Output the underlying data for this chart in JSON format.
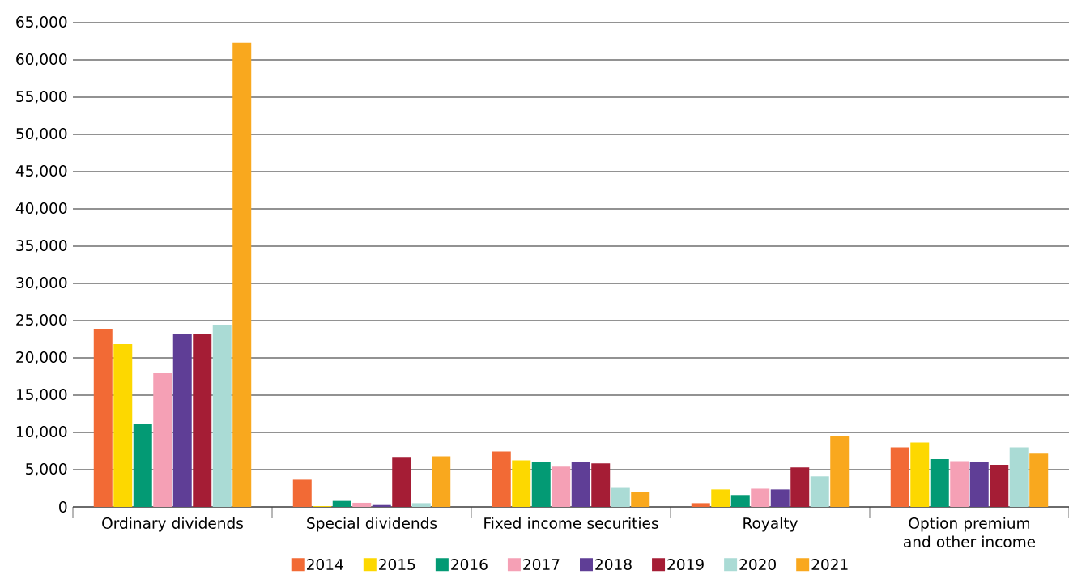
{
  "chart_data": {
    "type": "bar",
    "categories": [
      "Ordinary dividends",
      "Special dividends",
      "Fixed income securities",
      "Royalty",
      "Option premium and other income"
    ],
    "series": [
      {
        "name": "2014",
        "color": "#f26a35",
        "values": [
          23900,
          3650,
          7450,
          500,
          8000
        ]
      },
      {
        "name": "2015",
        "color": "#fdd800",
        "values": [
          21850,
          100,
          6250,
          2350,
          8650
        ]
      },
      {
        "name": "2016",
        "color": "#039a74",
        "values": [
          11150,
          800,
          6050,
          1600,
          6400
        ]
      },
      {
        "name": "2017",
        "color": "#f5a0b5",
        "values": [
          18050,
          550,
          5400,
          2450,
          6150
        ]
      },
      {
        "name": "2018",
        "color": "#5f3e96",
        "values": [
          23150,
          250,
          6050,
          2350,
          6050
        ]
      },
      {
        "name": "2019",
        "color": "#a51d35",
        "values": [
          23150,
          6700,
          5850,
          5300,
          5650
        ]
      },
      {
        "name": "2020",
        "color": "#aadbd5",
        "values": [
          24450,
          500,
          2550,
          4100,
          8000
        ]
      },
      {
        "name": "2021",
        "color": "#f9a81e",
        "values": [
          62300,
          6800,
          2050,
          9550,
          7150
        ]
      }
    ],
    "ylim": [
      0,
      65000
    ],
    "yticks": [
      0,
      {
        "value": 5000,
        "label": "5,000"
      },
      {
        "value": 10000,
        "label": "10,000"
      },
      {
        "value": 15000,
        "label": "15,000"
      },
      {
        "value": 20000,
        "label": "20,000"
      },
      {
        "value": 25000,
        "label": "25,000"
      },
      {
        "value": 30000,
        "label": "30,000"
      },
      {
        "value": 35000,
        "label": "35,000"
      },
      {
        "value": 40000,
        "label": "40,000"
      },
      {
        "value": 45000,
        "label": "45,000"
      },
      {
        "value": 50000,
        "label": "50,000"
      },
      {
        "value": 55000,
        "label": "55,000"
      },
      {
        "value": 60000,
        "label": "60,000"
      },
      {
        "value": 65000,
        "label": "65,000"
      }
    ],
    "grid": "y",
    "legend": "bottom"
  }
}
